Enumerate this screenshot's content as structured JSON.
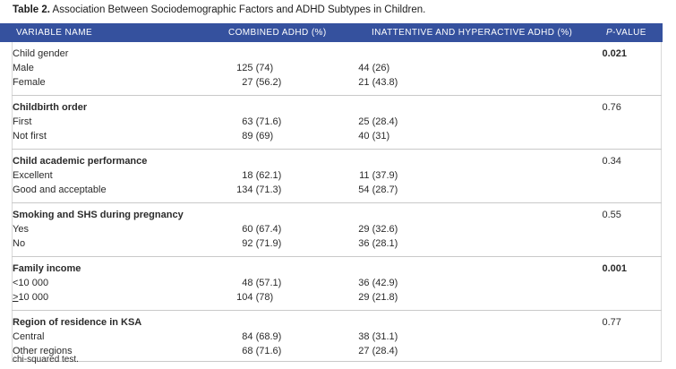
{
  "title": {
    "label": "Table 2.",
    "text": "Association Between Sociodemographic Factors and ADHD Subtypes in Children."
  },
  "colors": {
    "header_bg": "#35519E",
    "header_text": "#ffffff",
    "rule_gray": "#c9c9c9"
  },
  "header": {
    "variable": "VARIABLE NAME",
    "combined": "COMBINED ADHD (%)",
    "inattentive": "INATTENTIVE AND HYPERACTIVE ADHD (%)",
    "pvalue_italic": "P",
    "pvalue_rest": "-VALUE"
  },
  "sections": [
    {
      "label": "Child gender",
      "bold": false,
      "pvalue": "0.021",
      "pvalue_bold": true,
      "rows": [
        {
          "label": "Male",
          "combined_n": "125",
          "combined_pct": "(74)",
          "inatt_n": "44",
          "inatt_pct": "(26)"
        },
        {
          "label": "Female",
          "combined_n": "27",
          "combined_pct": "(56.2)",
          "inatt_n": "21",
          "inatt_pct": "(43.8)"
        }
      ]
    },
    {
      "label": "Childbirth order",
      "bold": true,
      "pvalue": "0.76",
      "pvalue_bold": false,
      "rows": [
        {
          "label": "First",
          "combined_n": "63",
          "combined_pct": "(71.6)",
          "inatt_n": "25",
          "inatt_pct": "(28.4)"
        },
        {
          "label": "Not first",
          "combined_n": "89",
          "combined_pct": "(69)",
          "inatt_n": "40",
          "inatt_pct": "(31)"
        }
      ]
    },
    {
      "label": "Child academic performance",
      "bold": true,
      "pvalue": "0.34",
      "pvalue_bold": false,
      "rows": [
        {
          "label": "Excellent",
          "combined_n": "18",
          "combined_pct": "(62.1)",
          "inatt_n": "11",
          "inatt_pct": "(37.9)"
        },
        {
          "label": "Good and acceptable",
          "combined_n": "134",
          "combined_pct": "(71.3)",
          "inatt_n": "54",
          "inatt_pct": "(28.7)"
        }
      ]
    },
    {
      "label": "Smoking and SHS during pregnancy",
      "bold": true,
      "pvalue": "0.55",
      "pvalue_bold": false,
      "rows": [
        {
          "label": "Yes",
          "combined_n": "60",
          "combined_pct": "(67.4)",
          "inatt_n": "29",
          "inatt_pct": "(32.6)"
        },
        {
          "label": "No",
          "combined_n": "92",
          "combined_pct": "(71.9)",
          "inatt_n": "36",
          "inatt_pct": "(28.1)"
        }
      ]
    },
    {
      "label": "Family income",
      "bold": true,
      "pvalue": "0.001",
      "pvalue_bold": true,
      "rows": [
        {
          "label": "<10 000",
          "combined_n": "48",
          "combined_pct": "(57.1)",
          "inatt_n": "36",
          "inatt_pct": "(42.9)"
        },
        {
          "label_prefix": ">",
          "label_rest": "10 000",
          "combined_n": "104",
          "combined_pct": "(78)",
          "inatt_n": "29",
          "inatt_pct": "(21.8)"
        }
      ]
    },
    {
      "label": "Region of residence in KSA",
      "bold": true,
      "pvalue": "0.77",
      "pvalue_bold": false,
      "rows": [
        {
          "label": "Central",
          "combined_n": "84",
          "combined_pct": "(68.9)",
          "inatt_n": "38",
          "inatt_pct": "(31.1)"
        },
        {
          "label": "Other regions",
          "combined_n": "68",
          "combined_pct": "(71.6)",
          "inatt_n": "27",
          "inatt_pct": "(28.4)"
        }
      ]
    }
  ],
  "footnote": "chi-squared test."
}
